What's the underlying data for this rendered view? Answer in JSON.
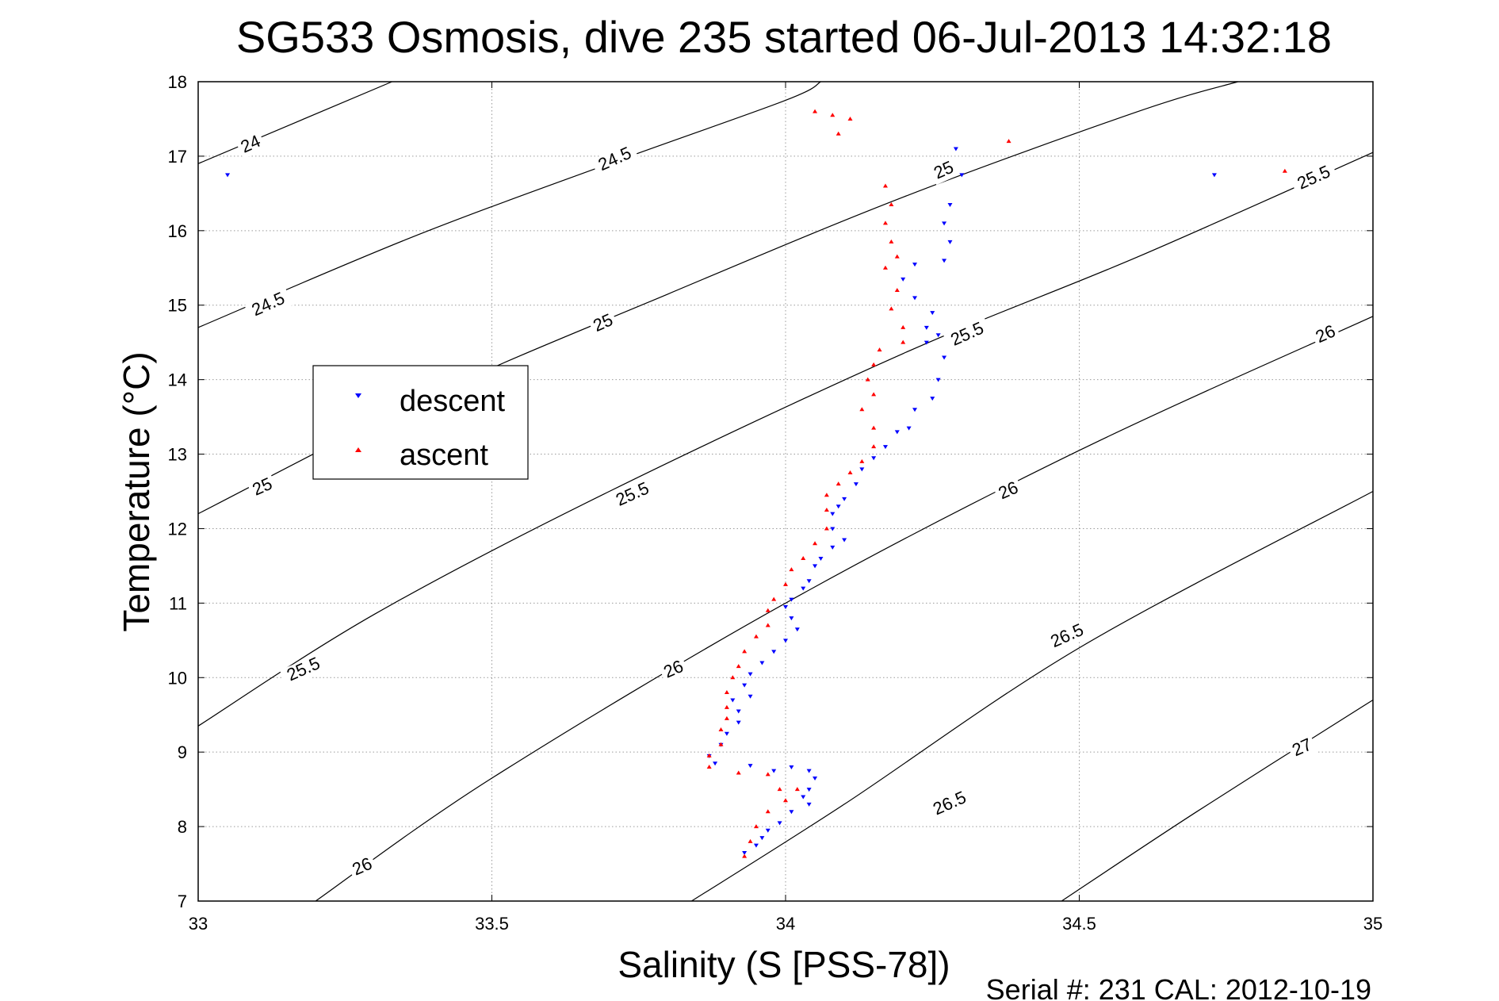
{
  "chart_data": {
    "type": "scatter",
    "title": "SG533 Osmosis, dive 235 started 06-Jul-2013 14:32:18",
    "xlabel": "Salinity (S [PSS-78])",
    "ylabel": "Temperature (°C)",
    "xlim": [
      33,
      35
    ],
    "ylim": [
      7,
      18
    ],
    "xticks": [
      33,
      33.5,
      34,
      34.5,
      35
    ],
    "xtick_labels": [
      "33",
      "33.5",
      "34",
      "34.5",
      "35"
    ],
    "yticks": [
      7,
      8,
      9,
      10,
      11,
      12,
      13,
      14,
      15,
      16,
      17,
      18
    ],
    "ytick_labels": [
      "7",
      "8",
      "9",
      "10",
      "11",
      "12",
      "13",
      "14",
      "15",
      "16",
      "17",
      "18"
    ],
    "grid": true,
    "legend_position": "left-middle",
    "footer": "Serial #: 231  CAL: 2012-10-19",
    "colors": {
      "descent": "#0000ff",
      "ascent": "#ff0000",
      "contour": "#000000",
      "grid": "#9a9a9a"
    },
    "contour_labels": [
      {
        "text": "24",
        "s": 33.09,
        "t": 17.15
      },
      {
        "text": "24.5",
        "s": 33.71,
        "t": 16.95
      },
      {
        "text": "25",
        "s": 34.27,
        "t": 16.8
      },
      {
        "text": "25.5",
        "s": 34.9,
        "t": 16.7
      },
      {
        "text": "24.5",
        "s": 33.12,
        "t": 15.0
      },
      {
        "text": "25",
        "s": 33.69,
        "t": 14.75
      },
      {
        "text": "25.5",
        "s": 34.31,
        "t": 14.6
      },
      {
        "text": "26",
        "s": 34.92,
        "t": 14.6
      },
      {
        "text": "25",
        "s": 33.11,
        "t": 12.55
      },
      {
        "text": "25.5",
        "s": 33.74,
        "t": 12.45
      },
      {
        "text": "26",
        "s": 34.38,
        "t": 12.5
      },
      {
        "text": "25.5",
        "s": 33.18,
        "t": 10.1
      },
      {
        "text": "26",
        "s": 33.81,
        "t": 10.1
      },
      {
        "text": "26.5",
        "s": 34.48,
        "t": 10.55
      },
      {
        "text": "26",
        "s": 33.28,
        "t": 7.45
      },
      {
        "text": "26.5",
        "s": 34.28,
        "t": 8.3
      },
      {
        "text": "27",
        "s": 34.88,
        "t": 9.05
      }
    ],
    "isopycnals": [
      {
        "level": "24",
        "points": [
          [
            33.0,
            16.9
          ],
          [
            33.33,
            18.0
          ]
        ]
      },
      {
        "level": "24.5",
        "points": [
          [
            33.0,
            14.7
          ],
          [
            33.36,
            15.9
          ],
          [
            33.7,
            16.9
          ],
          [
            34.0,
            17.75
          ],
          [
            34.06,
            18.0
          ]
        ]
      },
      {
        "level": "25",
        "points": [
          [
            33.0,
            12.2
          ],
          [
            33.4,
            13.8
          ],
          [
            33.8,
            15.15
          ],
          [
            34.2,
            16.45
          ],
          [
            34.6,
            17.6
          ],
          [
            34.77,
            18.0
          ]
        ]
      },
      {
        "level": "25.5",
        "points": [
          [
            33.0,
            9.35
          ],
          [
            33.3,
            10.85
          ],
          [
            33.7,
            12.5
          ],
          [
            34.2,
            14.35
          ],
          [
            34.6,
            15.65
          ],
          [
            35.0,
            17.05
          ]
        ]
      },
      {
        "level": "26",
        "points": [
          [
            33.2,
            7.0
          ],
          [
            33.5,
            8.65
          ],
          [
            34.0,
            11.0
          ],
          [
            34.5,
            13.05
          ],
          [
            35.0,
            14.85
          ]
        ]
      },
      {
        "level": "26.5",
        "points": [
          [
            33.84,
            7.0
          ],
          [
            34.1,
            8.3
          ],
          [
            34.5,
            10.4
          ],
          [
            35.0,
            12.5
          ]
        ]
      },
      {
        "level": "27",
        "points": [
          [
            34.47,
            7.0
          ],
          [
            34.7,
            8.2
          ],
          [
            35.0,
            9.7
          ]
        ]
      }
    ],
    "series": [
      {
        "name": "descent",
        "marker": "triangle-down",
        "points": [
          [
            33.05,
            16.75
          ],
          [
            34.29,
            17.1
          ],
          [
            34.3,
            16.75
          ],
          [
            34.28,
            16.35
          ],
          [
            34.27,
            16.1
          ],
          [
            34.28,
            15.85
          ],
          [
            34.27,
            15.6
          ],
          [
            34.22,
            15.55
          ],
          [
            34.2,
            15.35
          ],
          [
            34.22,
            15.1
          ],
          [
            34.25,
            14.9
          ],
          [
            34.24,
            14.7
          ],
          [
            34.26,
            14.6
          ],
          [
            34.24,
            14.5
          ],
          [
            34.27,
            14.3
          ],
          [
            34.26,
            14.0
          ],
          [
            34.25,
            13.75
          ],
          [
            34.22,
            13.6
          ],
          [
            34.21,
            13.35
          ],
          [
            34.19,
            13.3
          ],
          [
            34.17,
            13.1
          ],
          [
            34.15,
            12.95
          ],
          [
            34.13,
            12.8
          ],
          [
            34.12,
            12.6
          ],
          [
            34.1,
            12.4
          ],
          [
            34.09,
            12.3
          ],
          [
            34.08,
            12.2
          ],
          [
            34.08,
            12.0
          ],
          [
            34.1,
            11.85
          ],
          [
            34.08,
            11.75
          ],
          [
            34.06,
            11.6
          ],
          [
            34.05,
            11.5
          ],
          [
            34.04,
            11.3
          ],
          [
            34.03,
            11.2
          ],
          [
            34.01,
            11.05
          ],
          [
            34.0,
            10.95
          ],
          [
            34.01,
            10.8
          ],
          [
            34.02,
            10.65
          ],
          [
            34.0,
            10.5
          ],
          [
            33.98,
            10.35
          ],
          [
            33.96,
            10.2
          ],
          [
            33.94,
            10.05
          ],
          [
            33.93,
            9.9
          ],
          [
            33.94,
            9.75
          ],
          [
            33.91,
            9.7
          ],
          [
            33.92,
            9.55
          ],
          [
            33.92,
            9.4
          ],
          [
            33.9,
            9.25
          ],
          [
            33.89,
            9.1
          ],
          [
            33.87,
            8.95
          ],
          [
            33.88,
            8.85
          ],
          [
            33.94,
            8.82
          ],
          [
            33.98,
            8.75
          ],
          [
            34.01,
            8.8
          ],
          [
            34.04,
            8.75
          ],
          [
            34.05,
            8.65
          ],
          [
            34.04,
            8.5
          ],
          [
            34.03,
            8.4
          ],
          [
            34.04,
            8.3
          ],
          [
            34.01,
            8.2
          ],
          [
            33.99,
            8.05
          ],
          [
            33.97,
            7.95
          ],
          [
            33.96,
            7.85
          ],
          [
            33.95,
            7.75
          ],
          [
            33.93,
            7.65
          ],
          [
            34.73,
            16.75
          ]
        ]
      },
      {
        "name": "ascent",
        "marker": "triangle-up",
        "points": [
          [
            34.05,
            17.6
          ],
          [
            34.08,
            17.55
          ],
          [
            34.11,
            17.5
          ],
          [
            34.09,
            17.3
          ],
          [
            34.38,
            17.2
          ],
          [
            34.85,
            16.8
          ],
          [
            34.17,
            16.6
          ],
          [
            34.18,
            16.35
          ],
          [
            34.17,
            16.1
          ],
          [
            34.18,
            15.85
          ],
          [
            34.19,
            15.65
          ],
          [
            34.17,
            15.5
          ],
          [
            34.19,
            15.2
          ],
          [
            34.18,
            14.95
          ],
          [
            34.2,
            14.7
          ],
          [
            34.2,
            14.5
          ],
          [
            34.16,
            14.4
          ],
          [
            34.15,
            14.2
          ],
          [
            34.14,
            14.0
          ],
          [
            34.15,
            13.8
          ],
          [
            34.13,
            13.6
          ],
          [
            34.15,
            13.35
          ],
          [
            34.15,
            13.1
          ],
          [
            34.13,
            12.9
          ],
          [
            34.11,
            12.75
          ],
          [
            34.09,
            12.6
          ],
          [
            34.07,
            12.45
          ],
          [
            34.07,
            12.25
          ],
          [
            34.07,
            12.0
          ],
          [
            34.05,
            11.8
          ],
          [
            34.03,
            11.6
          ],
          [
            34.01,
            11.45
          ],
          [
            34.0,
            11.25
          ],
          [
            33.98,
            11.05
          ],
          [
            33.97,
            10.9
          ],
          [
            33.97,
            10.7
          ],
          [
            33.95,
            10.55
          ],
          [
            33.93,
            10.35
          ],
          [
            33.92,
            10.15
          ],
          [
            33.91,
            10.0
          ],
          [
            33.9,
            9.8
          ],
          [
            33.9,
            9.6
          ],
          [
            33.9,
            9.45
          ],
          [
            33.89,
            9.3
          ],
          [
            33.89,
            9.1
          ],
          [
            33.87,
            8.95
          ],
          [
            33.87,
            8.8
          ],
          [
            33.92,
            8.72
          ],
          [
            33.97,
            8.7
          ],
          [
            33.99,
            8.5
          ],
          [
            34.0,
            8.35
          ],
          [
            34.02,
            8.5
          ],
          [
            33.97,
            8.2
          ],
          [
            33.95,
            8.0
          ],
          [
            33.94,
            7.8
          ],
          [
            33.93,
            7.6
          ]
        ]
      }
    ]
  }
}
